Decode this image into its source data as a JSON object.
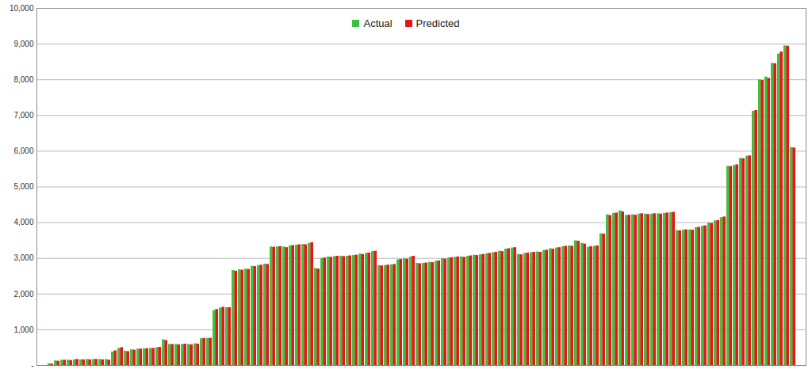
{
  "chart_data": {
    "type": "bar",
    "categories": [
      null,
      null,
      null,
      null,
      null,
      null,
      null,
      null,
      null,
      null,
      null,
      null,
      null,
      null,
      null,
      null,
      null,
      null,
      null,
      null,
      null,
      null,
      null,
      null,
      null,
      null,
      null,
      null,
      null,
      null,
      null,
      null,
      null,
      null,
      null,
      null,
      null,
      null,
      null,
      null,
      null,
      null,
      null,
      null,
      null,
      null,
      null,
      null,
      null,
      null,
      null,
      null,
      null,
      null,
      null,
      null,
      null,
      null,
      null,
      null,
      null,
      null,
      null,
      null,
      null,
      null,
      null,
      null,
      null,
      null,
      null,
      null,
      null,
      null,
      null,
      null,
      null,
      null,
      null,
      null,
      null,
      null,
      null,
      null,
      null,
      null,
      null,
      null,
      null,
      null,
      null,
      null,
      null,
      null,
      null,
      null,
      null,
      null,
      null,
      null,
      null,
      null,
      null,
      null,
      null,
      null,
      null,
      null,
      null,
      null,
      null,
      null,
      null,
      null,
      null,
      null,
      null,
      null
    ],
    "series": [
      {
        "name": "Actual",
        "color": "#3cc23c",
        "values": [
          50,
          130,
          150,
          150,
          160,
          160,
          170,
          170,
          170,
          170,
          380,
          480,
          400,
          440,
          460,
          470,
          480,
          500,
          720,
          590,
          590,
          590,
          590,
          610,
          750,
          760,
          1540,
          1610,
          1620,
          2660,
          2680,
          2700,
          2780,
          2800,
          2840,
          3320,
          3320,
          3320,
          3350,
          3370,
          3390,
          3420,
          2720,
          3000,
          3040,
          3050,
          3060,
          3060,
          3080,
          3120,
          3140,
          3190,
          2800,
          2800,
          2820,
          2960,
          2990,
          3040,
          2860,
          2860,
          2890,
          2920,
          2990,
          3010,
          3030,
          3040,
          3060,
          3090,
          3100,
          3130,
          3160,
          3200,
          3260,
          3290,
          3110,
          3140,
          3160,
          3180,
          3220,
          3270,
          3290,
          3330,
          3350,
          3490,
          3420,
          3310,
          3340,
          3690,
          4220,
          4260,
          4330,
          4200,
          4220,
          4240,
          4240,
          4240,
          4250,
          4260,
          4280,
          3780,
          3790,
          3800,
          3860,
          3900,
          3990,
          4050,
          4140,
          5580,
          5600,
          5800,
          5860,
          7120,
          8000,
          8080,
          8460,
          8720,
          8950,
          6100
        ]
      },
      {
        "name": "Predicted",
        "color": "#e8141b",
        "values": [
          40,
          120,
          150,
          140,
          170,
          160,
          160,
          170,
          160,
          150,
          410,
          500,
          390,
          430,
          460,
          470,
          480,
          510,
          700,
          590,
          580,
          600,
          580,
          600,
          760,
          760,
          1570,
          1630,
          1620,
          2640,
          2670,
          2690,
          2770,
          2810,
          2830,
          3310,
          3330,
          3300,
          3360,
          3380,
          3380,
          3440,
          2700,
          3010,
          3030,
          3060,
          3050,
          3070,
          3090,
          3110,
          3150,
          3200,
          2790,
          2810,
          2830,
          2970,
          2980,
          3060,
          2850,
          2870,
          2880,
          2930,
          2980,
          3020,
          3040,
          3030,
          3070,
          3080,
          3110,
          3140,
          3170,
          3190,
          3270,
          3300,
          3100,
          3150,
          3170,
          3170,
          3230,
          3260,
          3300,
          3340,
          3340,
          3480,
          3400,
          3330,
          3350,
          3680,
          4200,
          4270,
          4300,
          4210,
          4210,
          4250,
          4230,
          4250,
          4240,
          4270,
          4290,
          3770,
          3800,
          3790,
          3870,
          3910,
          3980,
          4060,
          4160,
          5570,
          5620,
          5790,
          5870,
          7140,
          7980,
          8040,
          8450,
          8780,
          8940,
          6090
        ]
      }
    ],
    "ylim": [
      0,
      10000
    ],
    "yticks": [
      {
        "value": 0,
        "label": "-"
      },
      {
        "value": 1000,
        "label": "1,000"
      },
      {
        "value": 2000,
        "label": "2,000"
      },
      {
        "value": 3000,
        "label": "3,000"
      },
      {
        "value": 4000,
        "label": "4,000"
      },
      {
        "value": 5000,
        "label": "5,000"
      },
      {
        "value": 6000,
        "label": "6,000"
      },
      {
        "value": 7000,
        "label": "7,000"
      },
      {
        "value": 8000,
        "label": "8,000"
      },
      {
        "value": 9000,
        "label": "9,000"
      },
      {
        "value": 10000,
        "label": "10,000"
      }
    ],
    "grid": true,
    "legend": "top",
    "tick_labels": "y"
  }
}
